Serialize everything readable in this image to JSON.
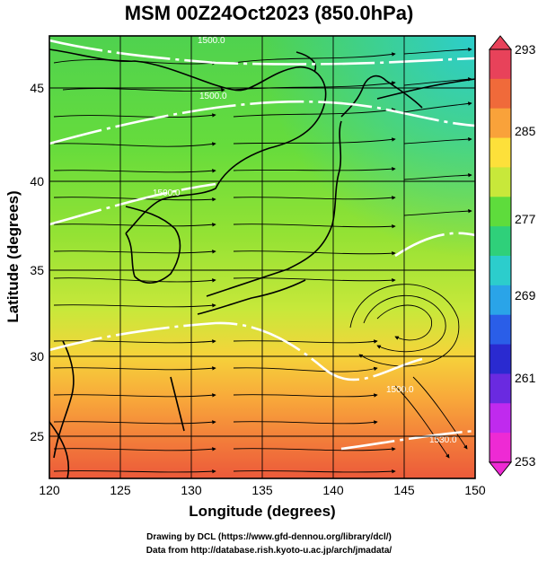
{
  "title": "MSM 00Z24Oct2023 (850.0hPa)",
  "xaxis": {
    "label": "Longitude (degrees)",
    "range": [
      120,
      150
    ],
    "ticks": [
      "120",
      "125",
      "130",
      "135",
      "140",
      "145",
      "150"
    ]
  },
  "yaxis": {
    "label": "Latitude  (degrees)",
    "range": [
      22.4,
      47.6
    ],
    "ticks": [
      "25",
      "30",
      "35",
      "40",
      "45"
    ]
  },
  "colorbar": {
    "ticks": [
      "293",
      "285",
      "277",
      "269",
      "261",
      "253"
    ],
    "colors": [
      "#e8425a",
      "#f06a3a",
      "#f9a23a",
      "#fde03a",
      "#c8e83a",
      "#5edc3c",
      "#2fd07a",
      "#2ccdcc",
      "#2aa4e8",
      "#2a5ee8",
      "#2a2ad0",
      "#6a2ae0",
      "#c02aee",
      "#ee2ad4"
    ]
  },
  "contours": [
    {
      "label": "1500.0"
    },
    {
      "label": "1500.0"
    },
    {
      "label": "1500.0"
    },
    {
      "label": "1500.0"
    },
    {
      "label": "1530.0"
    }
  ],
  "credits": [
    "Drawing by DCL (https://www.gfd-dennou.org/library/dcl/)",
    "Data from http://database.rish.kyoto-u.ac.jp/arch/jmadata/"
  ]
}
